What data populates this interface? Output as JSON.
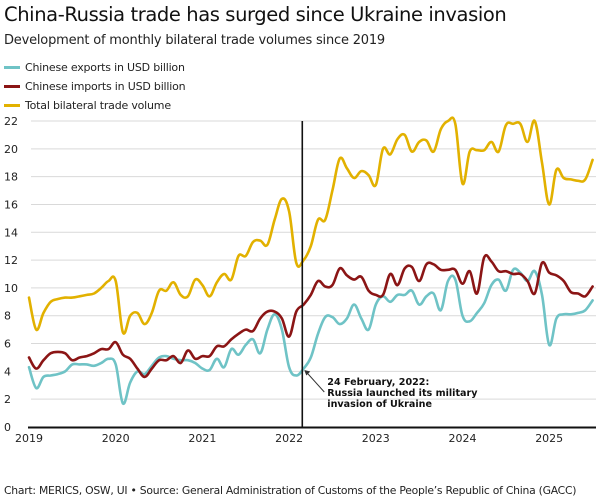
{
  "header": {
    "title": "China-Russia trade has surged since Ukraine invasion",
    "subtitle": "Development of monthly bilateral trade volumes since 2019"
  },
  "footer": {
    "text": "Chart: MERICS, OSW, UI • Source: General Administration of Customs of the People’s Republic of China (GACC)"
  },
  "chart_data": {
    "type": "line",
    "title": "China-Russia trade has surged since Ukraine invasion",
    "subtitle": "Development of monthly bilateral trade volumes since 2019",
    "xlabel": "",
    "ylabel": "",
    "x_start": "2019-01",
    "x_frequency": "monthly",
    "xticks": [
      "2019",
      "2020",
      "2021",
      "2022",
      "2023",
      "2024",
      "2025"
    ],
    "xlim": [
      2019,
      2025.55
    ],
    "yticks": [
      "0",
      "2",
      "4",
      "6",
      "8",
      "10",
      "12",
      "14",
      "16",
      "18",
      "20",
      "22"
    ],
    "ylim": [
      0,
      22
    ],
    "grid": true,
    "legend_position": "top-left",
    "series": [
      {
        "name": "Chinese exports in USD billion",
        "color": "#6fc3c6",
        "values": [
          4.3,
          2.8,
          3.6,
          3.7,
          3.8,
          4.0,
          4.5,
          4.5,
          4.5,
          4.4,
          4.6,
          4.9,
          4.5,
          1.7,
          3.2,
          4.0,
          3.8,
          4.4,
          5.0,
          5.1,
          4.9,
          4.8,
          4.8,
          4.6,
          4.2,
          4.1,
          4.9,
          4.3,
          5.6,
          5.2,
          5.9,
          6.3,
          5.3,
          7.0,
          8.1,
          7.0,
          4.3,
          3.7,
          4.2,
          5.0,
          6.7,
          7.9,
          7.9,
          7.4,
          7.8,
          8.8,
          7.8,
          7.0,
          8.8,
          9.4,
          9.0,
          9.5,
          9.5,
          9.8,
          8.8,
          9.4,
          9.6,
          8.4,
          10.5,
          10.6,
          8.0,
          7.6,
          8.2,
          8.9,
          10.2,
          10.6,
          9.8,
          11.3,
          11.1,
          10.5,
          11.2,
          9.5,
          5.9,
          7.8,
          8.1,
          8.1,
          8.2,
          8.4,
          9.1
        ]
      },
      {
        "name": "Chinese imports in USD billion",
        "color": "#8b1515",
        "values": [
          5.0,
          4.2,
          4.8,
          5.3,
          5.4,
          5.3,
          4.8,
          5.0,
          5.1,
          5.3,
          5.6,
          5.6,
          6.1,
          5.2,
          4.9,
          4.2,
          3.6,
          4.2,
          4.8,
          4.8,
          5.1,
          4.6,
          5.5,
          4.9,
          5.1,
          5.1,
          5.8,
          5.8,
          6.3,
          6.7,
          7.0,
          6.9,
          7.8,
          8.3,
          8.3,
          7.8,
          6.5,
          8.3,
          8.8,
          9.5,
          10.5,
          10.1,
          10.2,
          11.4,
          10.9,
          10.6,
          10.8,
          9.8,
          9.5,
          9.5,
          11.0,
          10.2,
          11.4,
          11.5,
          10.5,
          11.7,
          11.7,
          11.3,
          11.3,
          11.3,
          10.3,
          11.2,
          9.6,
          12.2,
          11.9,
          11.2,
          11.2,
          11.0,
          11.0,
          10.5,
          9.6,
          11.8,
          11.1,
          10.9,
          10.5,
          9.7,
          9.6,
          9.4,
          10.1
        ]
      },
      {
        "name": "Total bilateral trade volume",
        "color": "#e2b100",
        "values": [
          9.3,
          7.0,
          8.2,
          9.0,
          9.2,
          9.3,
          9.3,
          9.4,
          9.5,
          9.6,
          10.0,
          10.5,
          10.5,
          6.8,
          8.0,
          8.2,
          7.4,
          8.2,
          9.8,
          9.8,
          10.4,
          9.5,
          9.4,
          10.6,
          10.2,
          9.4,
          10.4,
          11.0,
          10.6,
          12.3,
          12.3,
          13.3,
          13.4,
          13.1,
          14.9,
          16.4,
          15.5,
          11.8,
          12.0,
          13.0,
          14.9,
          14.9,
          17.0,
          19.3,
          18.6,
          17.9,
          18.4,
          18.1,
          17.4,
          20.0,
          19.6,
          20.7,
          21.0,
          19.8,
          20.5,
          20.6,
          19.8,
          21.4,
          22.0,
          21.8,
          17.5,
          19.8,
          19.9,
          19.9,
          20.5,
          19.8,
          21.7,
          21.8,
          21.8,
          20.5,
          22.0,
          19.0,
          16.0,
          18.5,
          17.9,
          17.8,
          17.7,
          17.8,
          19.2
        ]
      }
    ],
    "annotations": [
      {
        "date": "2022-02-24",
        "lines": [
          "24 February, 2022:",
          "Russia launched its military",
          "invasion of Ukraine"
        ]
      }
    ]
  }
}
